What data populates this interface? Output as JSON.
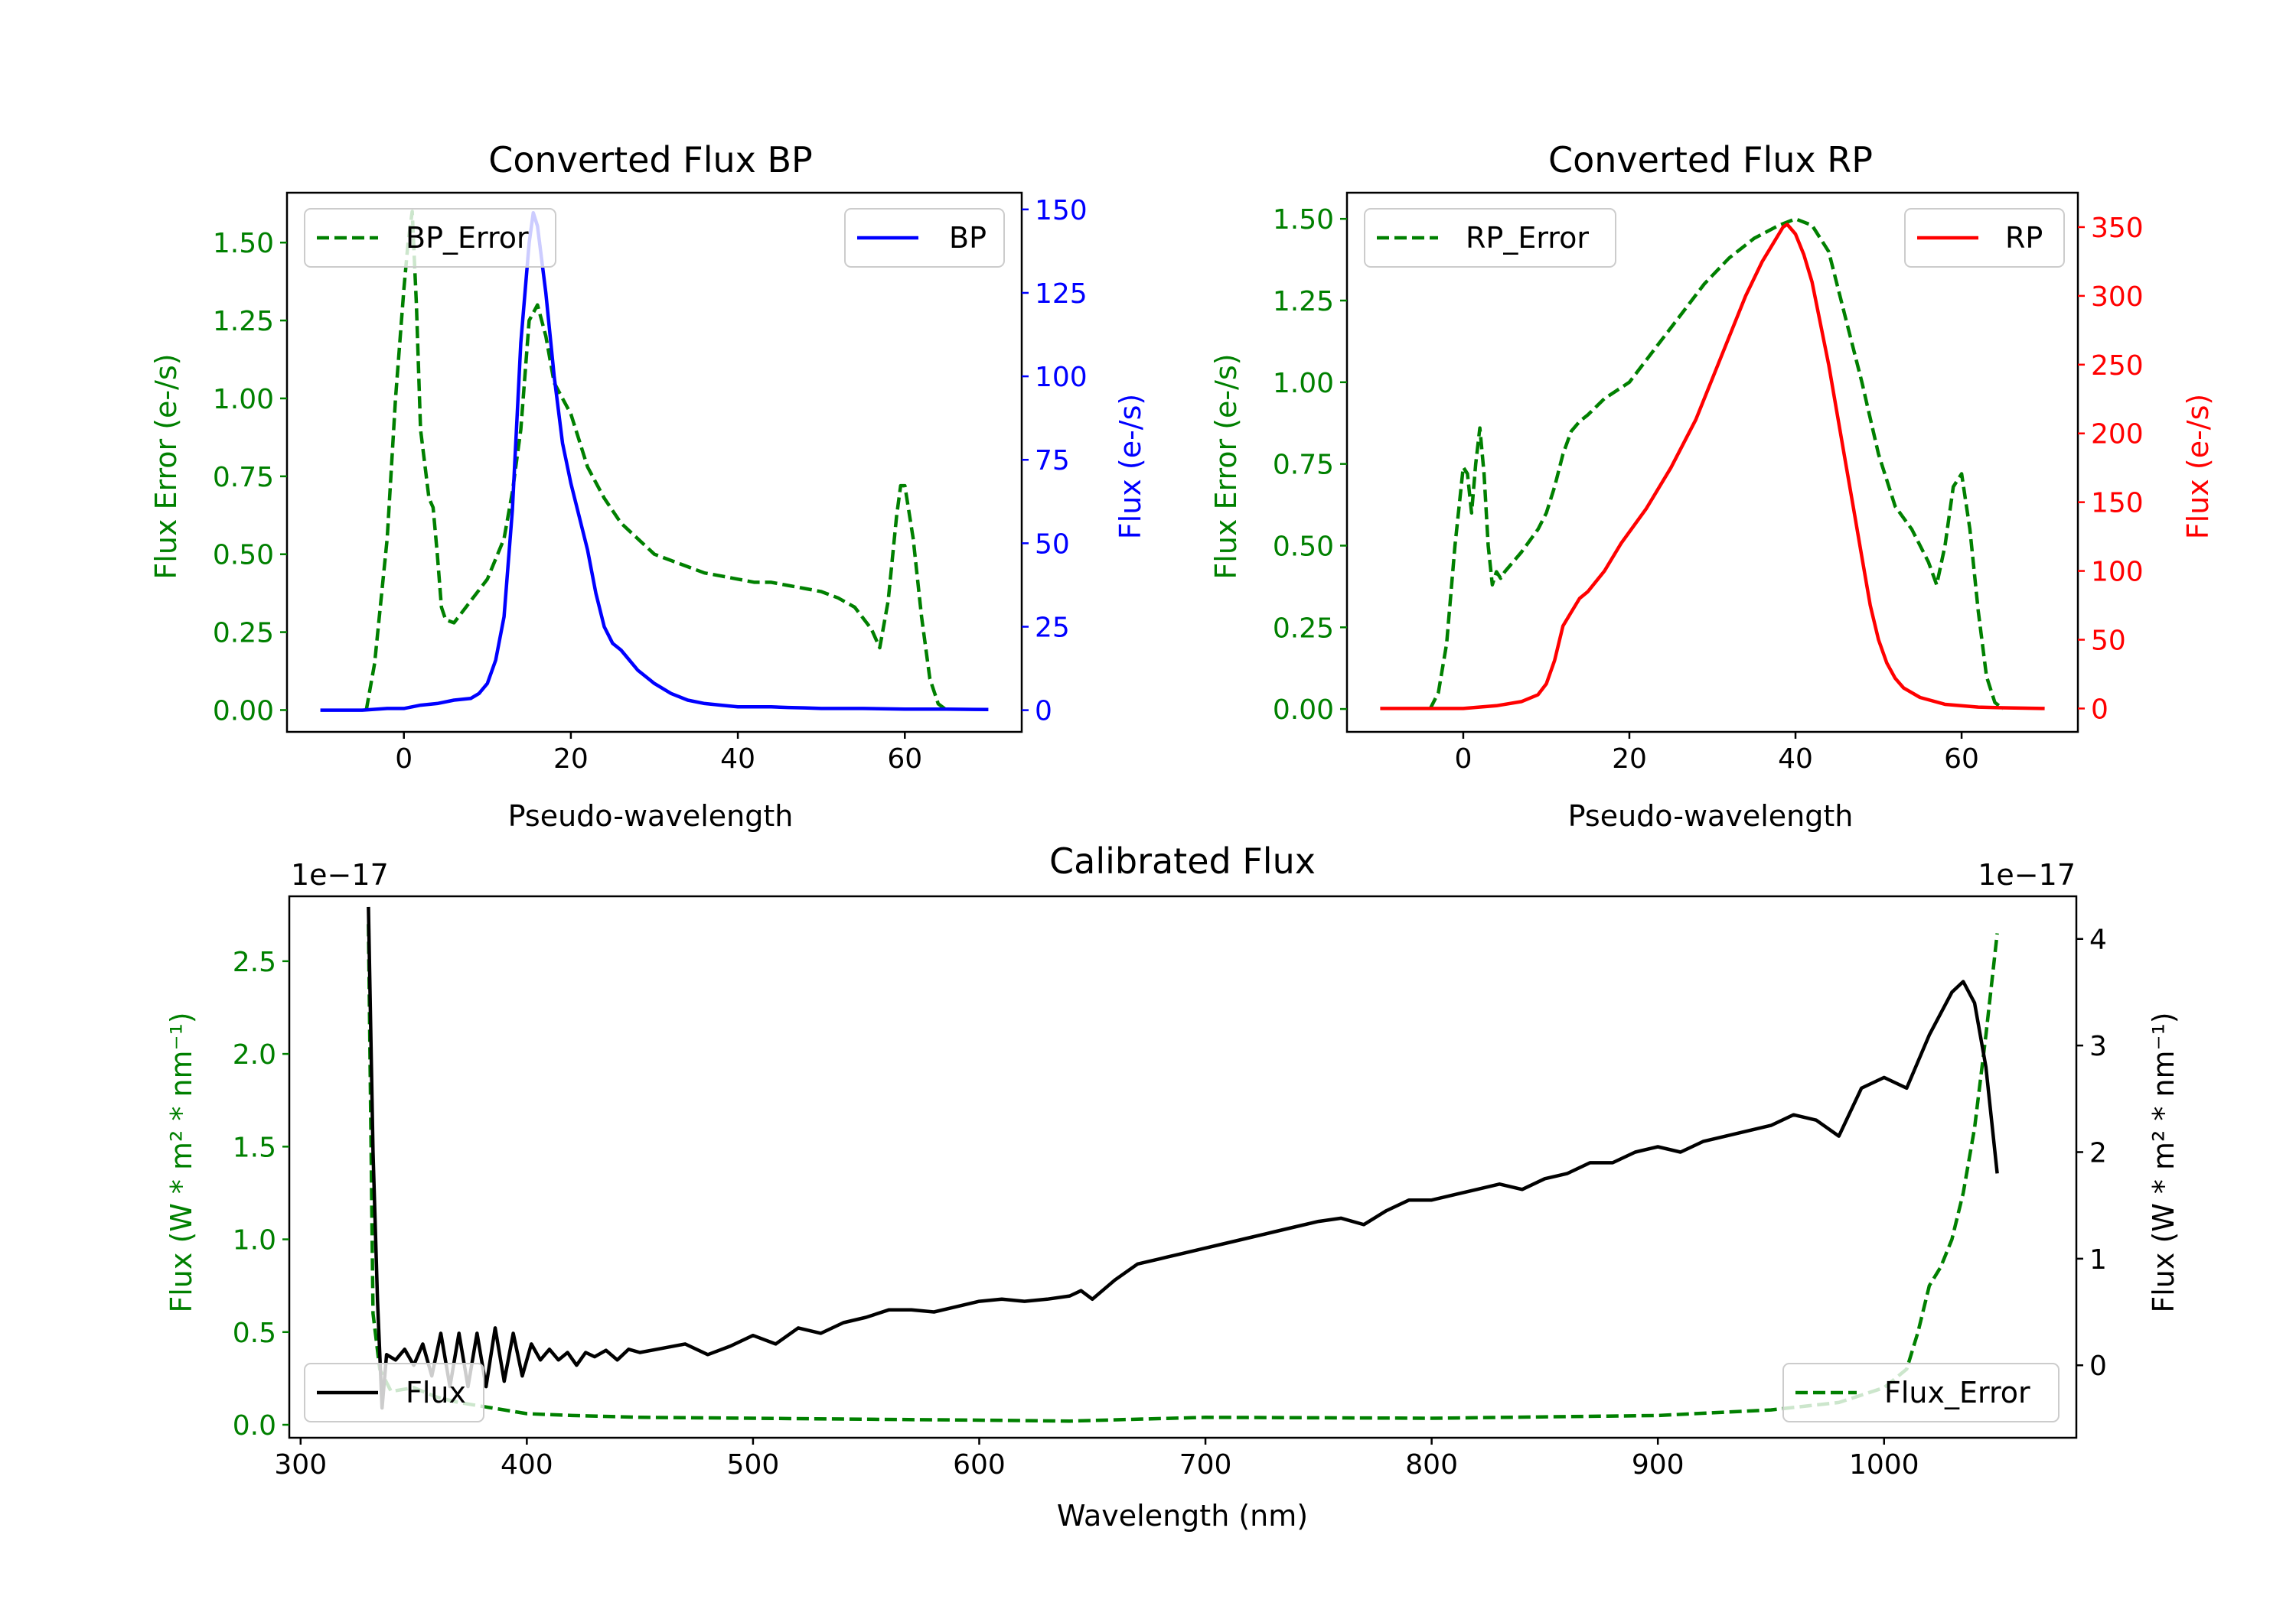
{
  "colors": {
    "bp": "#0000ff",
    "rp": "#ff0000",
    "error": "#008000",
    "flux": "#000000",
    "frame": "#000000"
  },
  "chart_data": [
    {
      "type": "line",
      "title": "Converted Flux BP",
      "xlabel": "Pseudo-wavelength",
      "ylabel_left": "Flux Error (e-/s)",
      "ylabel_right": "Flux (e-/s)",
      "xlim": [
        -14,
        74
      ],
      "ylim_left": [
        -0.07,
        1.66
      ],
      "ylim_right": [
        -6.5,
        155
      ],
      "xticks": [
        "0",
        "20",
        "40",
        "60"
      ],
      "yticks_left": [
        "0.00",
        "0.25",
        "0.50",
        "0.75",
        "1.00",
        "1.25",
        "1.50"
      ],
      "yticks_right": [
        "0",
        "25",
        "50",
        "75",
        "100",
        "125",
        "150"
      ],
      "legend_left": "BP_Error",
      "legend_right": "BP",
      "series": [
        {
          "name": "BP_Error",
          "axis": "left",
          "style": "dashed",
          "color": "#008000",
          "x": [
            -4.5,
            -3.5,
            -2,
            -1,
            0,
            0.5,
            1,
            1.5,
            2,
            3,
            3.5,
            4,
            4.5,
            5,
            6,
            8,
            10,
            12,
            13,
            14,
            15,
            16,
            17,
            18,
            20,
            22,
            24,
            26,
            28,
            30,
            32,
            34,
            36,
            38,
            40,
            42,
            44,
            46,
            48,
            50,
            52,
            54,
            56,
            57,
            58,
            59,
            59.5,
            60,
            61,
            62,
            63,
            64,
            65
          ],
          "y": [
            0.0,
            0.15,
            0.55,
            1.0,
            1.35,
            1.5,
            1.6,
            1.3,
            0.9,
            0.68,
            0.65,
            0.5,
            0.33,
            0.29,
            0.28,
            0.35,
            0.42,
            0.55,
            0.7,
            0.9,
            1.25,
            1.3,
            1.2,
            1.05,
            0.95,
            0.78,
            0.68,
            0.6,
            0.55,
            0.5,
            0.48,
            0.46,
            0.44,
            0.43,
            0.42,
            0.41,
            0.41,
            0.4,
            0.39,
            0.38,
            0.36,
            0.33,
            0.26,
            0.2,
            0.35,
            0.62,
            0.72,
            0.72,
            0.55,
            0.3,
            0.1,
            0.02,
            0.0
          ]
        },
        {
          "name": "BP",
          "axis": "right",
          "style": "solid",
          "color": "#0000ff",
          "x": [
            -10,
            -5,
            -2,
            0,
            2,
            4,
            6,
            8,
            9,
            10,
            11,
            12,
            13,
            14,
            15,
            15.5,
            16,
            17,
            18,
            19,
            20,
            21,
            22,
            23,
            24,
            25,
            26,
            28,
            30,
            32,
            34,
            36,
            38,
            40,
            42,
            44,
            46,
            48,
            50,
            55,
            60,
            65,
            70
          ],
          "y": [
            0,
            0,
            0.5,
            0.5,
            1.5,
            2,
            3,
            3.5,
            5,
            8,
            15,
            28,
            60,
            110,
            140,
            149,
            145,
            125,
            100,
            80,
            68,
            58,
            48,
            35,
            25,
            20,
            18,
            12,
            8,
            5,
            3,
            2,
            1.5,
            1,
            1,
            1,
            0.8,
            0.7,
            0.5,
            0.5,
            0.3,
            0.3,
            0.2
          ]
        }
      ]
    },
    {
      "type": "line",
      "title": "Converted Flux RP",
      "xlabel": "Pseudo-wavelength",
      "ylabel_left": "Flux Error (e-/s)",
      "ylabel_right": "Flux (e-/s)",
      "xlim": [
        -14,
        74
      ],
      "ylim_left": [
        -0.07,
        1.58
      ],
      "ylim_right": [
        -17,
        375
      ],
      "xticks": [
        "0",
        "20",
        "40",
        "60"
      ],
      "yticks_left": [
        "0.00",
        "0.25",
        "0.50",
        "0.75",
        "1.00",
        "1.25",
        "1.50"
      ],
      "yticks_right": [
        "0",
        "50",
        "100",
        "150",
        "200",
        "250",
        "300",
        "350"
      ],
      "legend_left": "RP_Error",
      "legend_right": "RP",
      "series": [
        {
          "name": "RP_Error",
          "axis": "left",
          "style": "dashed",
          "color": "#008000",
          "x": [
            -4,
            -3,
            -2,
            -1,
            0,
            0.5,
            1,
            1.5,
            2,
            2.5,
            3,
            3.5,
            4,
            4.5,
            5,
            7,
            9,
            10,
            11,
            12,
            13,
            14,
            15,
            17,
            20,
            23,
            26,
            29,
            32,
            35,
            38,
            40,
            42,
            44,
            46,
            48,
            50,
            52,
            54,
            56,
            57,
            58,
            59,
            60,
            61,
            62,
            63,
            64,
            65
          ],
          "y": [
            0.0,
            0.05,
            0.2,
            0.5,
            0.74,
            0.72,
            0.6,
            0.75,
            0.86,
            0.72,
            0.5,
            0.38,
            0.42,
            0.4,
            0.42,
            0.48,
            0.55,
            0.6,
            0.68,
            0.78,
            0.85,
            0.88,
            0.9,
            0.95,
            1.0,
            1.1,
            1.2,
            1.3,
            1.38,
            1.44,
            1.48,
            1.5,
            1.48,
            1.4,
            1.2,
            1.0,
            0.78,
            0.62,
            0.55,
            0.45,
            0.38,
            0.5,
            0.68,
            0.72,
            0.55,
            0.3,
            0.1,
            0.02,
            0.0
          ]
        },
        {
          "name": "RP",
          "axis": "right",
          "style": "solid",
          "color": "#ff0000",
          "x": [
            -10,
            -2,
            0,
            4,
            7,
            9,
            10,
            11,
            12,
            13,
            14,
            15,
            17,
            19,
            22,
            25,
            28,
            30,
            32,
            34,
            36,
            37,
            38,
            38.5,
            39,
            40,
            41,
            42,
            44,
            46,
            47,
            48,
            49,
            50,
            51,
            52,
            53,
            55,
            58,
            62,
            65,
            70
          ],
          "y": [
            0,
            0,
            0,
            2,
            5,
            10,
            18,
            35,
            60,
            70,
            80,
            85,
            100,
            120,
            145,
            175,
            210,
            240,
            270,
            300,
            325,
            335,
            345,
            350,
            352,
            345,
            330,
            310,
            250,
            180,
            145,
            110,
            75,
            50,
            33,
            22,
            15,
            8,
            3,
            1,
            0.5,
            0
          ]
        }
      ]
    },
    {
      "type": "line",
      "title": "Calibrated Flux",
      "xlabel": "Wavelength (nm)",
      "ylabel_left": "Flux (W * m² * nm⁻¹)",
      "ylabel_right": "Flux (W * m² * nm⁻¹)",
      "offset_left": "1e−17",
      "offset_right": "1e−17",
      "xlim": [
        295,
        1085
      ],
      "ylim_left": [
        -0.07,
        2.85
      ],
      "ylim_right": [
        -0.68,
        4.4
      ],
      "xticks": [
        "300",
        "400",
        "500",
        "600",
        "700",
        "800",
        "900",
        "1000"
      ],
      "yticks_left": [
        "0.0",
        "0.5",
        "1.0",
        "1.5",
        "2.0",
        "2.5"
      ],
      "yticks_right": [
        "0",
        "1",
        "2",
        "3",
        "4"
      ],
      "legend_left": "Flux",
      "legend_right": "Flux_Error",
      "series": [
        {
          "name": "Flux_Error",
          "axis": "left",
          "style": "dashed",
          "color": "#008000",
          "x": [
            330,
            332,
            335,
            340,
            350,
            360,
            370,
            380,
            390,
            400,
            420,
            450,
            500,
            550,
            600,
            640,
            700,
            800,
            900,
            950,
            980,
            1000,
            1010,
            1015,
            1020,
            1025,
            1030,
            1035,
            1040,
            1045,
            1050
          ],
          "y": [
            2.7,
            0.6,
            0.3,
            0.18,
            0.2,
            0.15,
            0.12,
            0.1,
            0.08,
            0.06,
            0.05,
            0.04,
            0.035,
            0.03,
            0.025,
            0.02,
            0.04,
            0.035,
            0.05,
            0.08,
            0.12,
            0.2,
            0.3,
            0.5,
            0.75,
            0.85,
            1.0,
            1.25,
            1.6,
            2.1,
            2.65
          ]
        },
        {
          "name": "Flux",
          "axis": "right",
          "style": "solid",
          "color": "#000000",
          "x": [
            330,
            332,
            334,
            336,
            338,
            342,
            346,
            350,
            354,
            358,
            362,
            366,
            370,
            374,
            378,
            382,
            386,
            390,
            394,
            398,
            402,
            406,
            410,
            414,
            418,
            422,
            426,
            430,
            435,
            440,
            445,
            450,
            460,
            470,
            480,
            490,
            500,
            510,
            520,
            530,
            540,
            550,
            560,
            570,
            580,
            590,
            600,
            610,
            620,
            630,
            640,
            645,
            650,
            660,
            670,
            680,
            690,
            700,
            710,
            720,
            730,
            740,
            750,
            760,
            770,
            780,
            790,
            800,
            810,
            820,
            830,
            840,
            850,
            860,
            870,
            880,
            890,
            900,
            910,
            920,
            930,
            940,
            950,
            960,
            970,
            980,
            990,
            1000,
            1010,
            1020,
            1030,
            1035,
            1040,
            1045,
            1050
          ],
          "y": [
            4.3,
            2.0,
            0.6,
            -0.4,
            0.1,
            0.05,
            0.15,
            0.0,
            0.2,
            -0.1,
            0.3,
            -0.2,
            0.3,
            -0.2,
            0.3,
            -0.2,
            0.35,
            -0.15,
            0.3,
            -0.1,
            0.2,
            0.05,
            0.15,
            0.05,
            0.12,
            0.0,
            0.12,
            0.08,
            0.14,
            0.05,
            0.15,
            0.12,
            0.16,
            0.2,
            0.1,
            0.18,
            0.28,
            0.2,
            0.35,
            0.3,
            0.4,
            0.45,
            0.52,
            0.52,
            0.5,
            0.55,
            0.6,
            0.62,
            0.6,
            0.62,
            0.65,
            0.7,
            0.62,
            0.8,
            0.95,
            1.0,
            1.05,
            1.1,
            1.15,
            1.2,
            1.25,
            1.3,
            1.35,
            1.38,
            1.32,
            1.45,
            1.55,
            1.55,
            1.6,
            1.65,
            1.7,
            1.65,
            1.75,
            1.8,
            1.9,
            1.9,
            2.0,
            2.05,
            2.0,
            2.1,
            2.15,
            2.2,
            2.25,
            2.35,
            2.3,
            2.15,
            2.6,
            2.7,
            2.6,
            3.1,
            3.5,
            3.6,
            3.4,
            2.8,
            1.8
          ]
        }
      ]
    }
  ]
}
